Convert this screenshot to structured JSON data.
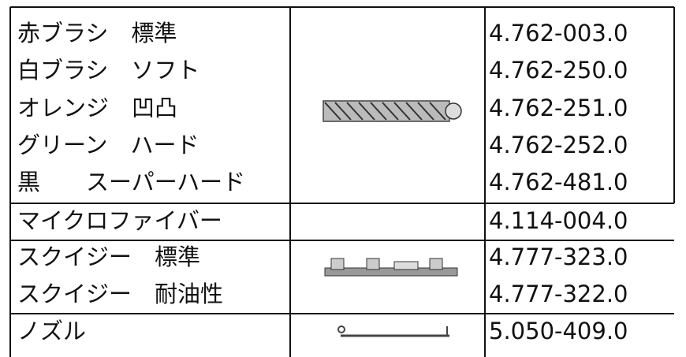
{
  "table": {
    "rows": [
      [
        "赤ブラシ　標準",
        "4.762-003.0"
      ],
      [
        "白ブラシ　ソフト",
        "4.762-250.0"
      ],
      [
        "オレンジ　凹凸",
        "4.762-251.0"
      ],
      [
        "グリーン　ハード",
        "4.762-252.0"
      ],
      [
        "黒　　スーパーハード",
        "4.762-481.0"
      ],
      [
        "マイクロファイバー",
        "4.114-004.0"
      ],
      [
        "スクイジー　標準",
        "4.777-323.0"
      ],
      [
        "スクイジー　耐油性",
        "4.777-322.0"
      ],
      [
        "ノズル",
        "5.050-409.0"
      ]
    ]
  }
}
